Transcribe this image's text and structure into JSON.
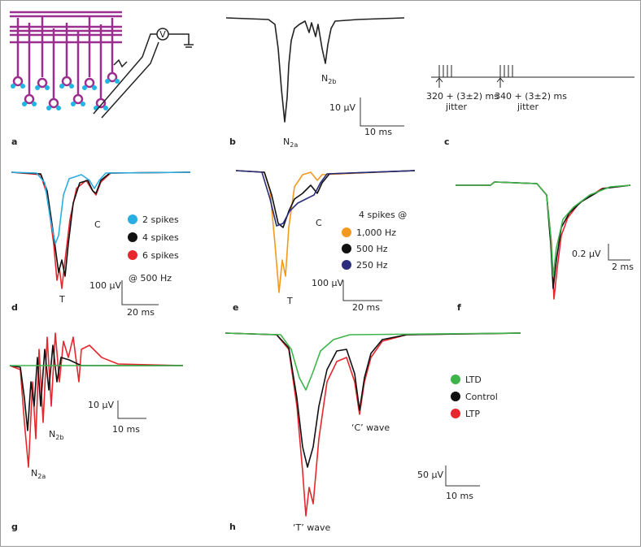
{
  "panel_labels": [
    "a",
    "b",
    "c",
    "d",
    "e",
    "f",
    "g",
    "h"
  ],
  "a": {
    "meter": "V"
  },
  "b": {
    "peak1": {
      "base": "N",
      "sub": "2a"
    },
    "peak2": {
      "base": "N",
      "sub": "2b"
    },
    "scale_y": "10 μV",
    "scale_x": "10 ms"
  },
  "c": {
    "train1": [
      "320 + (3±2) ms",
      "jitter"
    ],
    "train2": [
      "340 + (3±2) ms",
      "jitter"
    ]
  },
  "d": {
    "legend": [
      "2 spikes",
      "4 spikes",
      "6 spikes"
    ],
    "legend_colors": [
      "#29aee4",
      "#111111",
      "#e8262d"
    ],
    "wave_c": "C",
    "wave_t": "T",
    "scale_y": "100 μV",
    "scale_note": "@ 500 Hz",
    "scale_x": "20 ms"
  },
  "e": {
    "legend_title": "4 spikes @",
    "legend": [
      "1,000 Hz",
      "500 Hz",
      "250 Hz"
    ],
    "legend_colors": [
      "#f39a1e",
      "#111111",
      "#2b2e7c"
    ],
    "wave_c": "C",
    "wave_t": "T",
    "scale_y": "100 μV",
    "scale_x": "20 ms"
  },
  "f": {
    "scale_y": "0.2 μV",
    "scale_x": "2 ms"
  },
  "g": {
    "peak1": {
      "base": "N",
      "sub": "2a"
    },
    "peak2": {
      "base": "N",
      "sub": "2b"
    },
    "scale_y": "10 μV",
    "scale_x": "10 ms"
  },
  "h": {
    "legend": [
      "LTD",
      "Control",
      "LTP"
    ],
    "legend_colors": [
      "#3db54a",
      "#111111",
      "#e8262d"
    ],
    "wave_c": "‘C’ wave",
    "wave_t": "‘T’ wave",
    "scale_y": "50 μV",
    "scale_x": "10 ms"
  }
}
